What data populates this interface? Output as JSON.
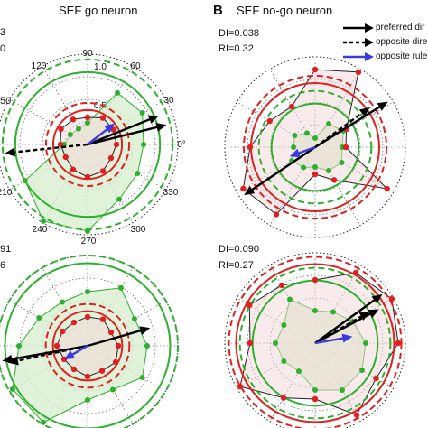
{
  "titles": {
    "left": "SEF go neuron",
    "right": "SEF no-go neuron"
  },
  "panel_letter": "B",
  "stats": {
    "left_top_line1": "3",
    "left_top_line2": "0",
    "left_top_line3": "50",
    "left_bottom_line1": "91",
    "left_bottom_line2": "6",
    "right_top_di": "DI=0.038",
    "right_top_ri": "RI=0.32",
    "right_bottom_di": "DI=0.090",
    "right_bottom_ri": "RI=0.27"
  },
  "legend": [
    {
      "label": "preferred dir",
      "style": "solid",
      "color": "#000000"
    },
    {
      "label": "opposite dire",
      "style": "dashed",
      "color": "#000000"
    },
    {
      "label": "opposite rule",
      "style": "solid",
      "color": "#3a3ae0"
    }
  ],
  "angle_labels": [
    "90",
    "60",
    "30",
    "0°",
    "330",
    "300",
    "270",
    "240",
    "210",
    "120"
  ],
  "radius_labels": [
    "1.0",
    "0.5"
  ],
  "colors": {
    "go_ring": "#2db02d",
    "nogo_ring": "#e02020",
    "go_fill": "#d8efd0",
    "nogo_fill": "#f3d8d8",
    "arrow": "#000000",
    "rule_arrow": "#3a3ae0",
    "marker_red": "#e02020",
    "marker_green": "#2db02d"
  },
  "chart_data": [
    {
      "type": "polar",
      "panel": "top-left",
      "go_curve_r": [
        0.62,
        0.7,
        0.66,
        0.24,
        0.2,
        0.22,
        0.26,
        0.8,
        0.98,
        0.96,
        0.7,
        0.64
      ],
      "nogo_curve_r": [
        0.32,
        0.33,
        0.34,
        0.3,
        0.32,
        0.34,
        0.3,
        0.28,
        0.32,
        0.36,
        0.34,
        0.3
      ],
      "arrows": [
        {
          "kind": "preferred",
          "angle_deg": 14,
          "r": 0.9
        },
        {
          "kind": "preferred",
          "angle_deg": 22,
          "r": 0.85
        },
        {
          "kind": "opposite",
          "angle_deg": 186,
          "r": 0.92
        },
        {
          "kind": "rule",
          "angle_deg": 38,
          "r": 0.38
        }
      ]
    },
    {
      "type": "polar",
      "panel": "bottom-left",
      "go_curve_r": [
        0.66,
        0.6,
        0.74,
        0.6,
        0.56,
        0.62,
        0.76,
        0.96,
        0.98,
        0.6,
        0.56,
        0.7
      ],
      "nogo_curve_r": [
        0.34,
        0.3,
        0.34,
        0.32,
        0.3,
        0.32,
        0.34,
        0.3,
        0.3,
        0.34,
        0.32,
        0.36
      ],
      "arrows": [
        {
          "kind": "preferred",
          "angle_deg": 190,
          "r": 0.96
        },
        {
          "kind": "preferred",
          "angle_deg": 16,
          "r": 0.72
        },
        {
          "kind": "opposite",
          "angle_deg": 192,
          "r": 0.9
        },
        {
          "kind": "rule",
          "angle_deg": 210,
          "r": 0.3
        }
      ]
    },
    {
      "type": "polar",
      "panel": "top-right",
      "go_curve_r": [
        0.3,
        0.36,
        0.3,
        0.1,
        0.18,
        0.26,
        0.24,
        0.3,
        0.26,
        0.22,
        0.3,
        0.34
      ],
      "nogo_curve_r": [
        0.34,
        0.4,
        0.96,
        0.86,
        0.52,
        0.58,
        0.72,
        0.92,
        0.86,
        0.3,
        0.42,
        0.92
      ],
      "arrows": [
        {
          "kind": "preferred",
          "angle_deg": 32,
          "r": 0.95
        },
        {
          "kind": "preferred",
          "angle_deg": 214,
          "r": 0.95
        },
        {
          "kind": "opposite",
          "angle_deg": 36,
          "r": 0.75
        },
        {
          "kind": "rule",
          "angle_deg": 200,
          "r": 0.3
        }
      ]
    },
    {
      "type": "polar",
      "panel": "bottom-right",
      "go_curve_r": [
        0.56,
        0.48,
        0.4,
        0.36,
        0.56,
        0.4,
        0.44,
        0.4,
        0.36,
        0.52,
        0.6,
        0.6
      ],
      "nogo_curve_r": [
        0.92,
        0.98,
        0.9,
        0.7,
        0.74,
        0.84,
        0.72,
        0.96,
        0.7,
        0.62,
        0.92,
        0.78
      ],
      "arrows": [
        {
          "kind": "preferred",
          "angle_deg": 36,
          "r": 0.92
        },
        {
          "kind": "preferred",
          "angle_deg": 28,
          "r": 0.8
        },
        {
          "kind": "opposite",
          "angle_deg": 30,
          "r": 0.7
        },
        {
          "kind": "rule",
          "angle_deg": 10,
          "r": 0.42
        }
      ]
    }
  ]
}
